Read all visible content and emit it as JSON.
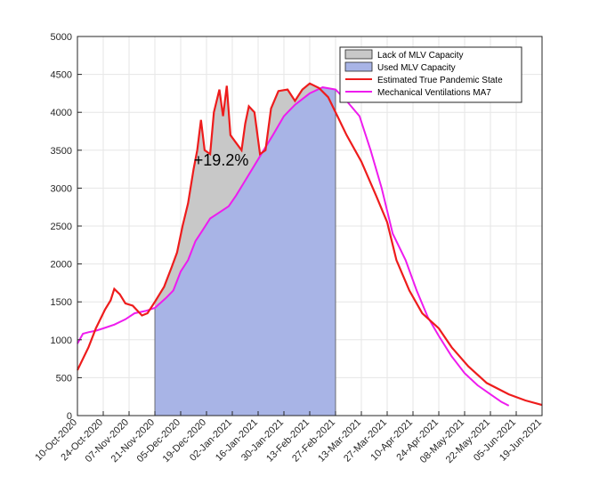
{
  "chart_data": {
    "type": "area",
    "ylim": [
      0,
      5000
    ],
    "yticks": [
      0,
      500,
      1000,
      1500,
      2000,
      2500,
      3000,
      3500,
      4000,
      4500,
      5000
    ],
    "xlim": [
      "2020-10-10",
      "2021-06-19"
    ],
    "xtick_dates": [
      "2020-10-10",
      "2020-10-24",
      "2020-11-07",
      "2020-11-21",
      "2020-12-05",
      "2020-12-19",
      "2021-01-02",
      "2021-01-16",
      "2021-01-30",
      "2021-02-13",
      "2021-02-27",
      "2021-03-13",
      "2021-03-27",
      "2021-04-10",
      "2021-04-24",
      "2021-05-08",
      "2021-05-22",
      "2021-06-05",
      "2021-06-19"
    ],
    "xtick_labels": [
      "10-Oct-2020",
      "24-Oct-2020",
      "07-Nov-2020",
      "21-Nov-2020",
      "05-Dec-2020",
      "19-Dec-2020",
      "02-Jan-2021",
      "16-Jan-2021",
      "30-Jan-2021",
      "13-Feb-2021",
      "27-Feb-2021",
      "13-Mar-2021",
      "27-Mar-2021",
      "10-Apr-2021",
      "24-Apr-2021",
      "08-May-2021",
      "22-May-2021",
      "05-Jun-2021",
      "19-Jun-2021"
    ],
    "grid": true,
    "legend_position": "top-right",
    "shaded_region": [
      "2020-11-21",
      "2021-02-27"
    ],
    "annotation": {
      "text": "+19.2%",
      "x": "2020-12-27",
      "y": 3300
    },
    "series": [
      {
        "name": "Lack of MLV Capacity",
        "kind": "area",
        "color": "#c8c8c8",
        "note_bounds": "between Mechanical Ventilations MA7 and Estimated True Pandemic State"
      },
      {
        "name": "Used MLV Capacity",
        "kind": "area",
        "color": "#a8b4e6",
        "note_bounds": "under Mechanical Ventilations MA7"
      },
      {
        "name": "Estimated True Pandemic State",
        "kind": "line",
        "color": "#ee1c1c",
        "points": [
          [
            "2020-10-10",
            600
          ],
          [
            "2020-10-16",
            900
          ],
          [
            "2020-10-20",
            1150
          ],
          [
            "2020-10-25",
            1400
          ],
          [
            "2020-10-28",
            1520
          ],
          [
            "2020-10-30",
            1670
          ],
          [
            "2020-11-02",
            1600
          ],
          [
            "2020-11-05",
            1480
          ],
          [
            "2020-11-09",
            1450
          ],
          [
            "2020-11-14",
            1320
          ],
          [
            "2020-11-17",
            1350
          ],
          [
            "2020-11-21",
            1500
          ],
          [
            "2020-11-26",
            1700
          ],
          [
            "2020-11-30",
            1950
          ],
          [
            "2020-12-03",
            2150
          ],
          [
            "2020-12-06",
            2500
          ],
          [
            "2020-12-09",
            2800
          ],
          [
            "2020-12-12",
            3250
          ],
          [
            "2020-12-14",
            3500
          ],
          [
            "2020-12-16",
            3900
          ],
          [
            "2020-12-18",
            3500
          ],
          [
            "2020-12-21",
            3450
          ],
          [
            "2020-12-23",
            4000
          ],
          [
            "2020-12-26",
            4300
          ],
          [
            "2020-12-28",
            3950
          ],
          [
            "2020-12-30",
            4350
          ],
          [
            "2021-01-01",
            3700
          ],
          [
            "2021-01-04",
            3600
          ],
          [
            "2021-01-07",
            3500
          ],
          [
            "2021-01-09",
            3850
          ],
          [
            "2021-01-11",
            4080
          ],
          [
            "2021-01-14",
            4000
          ],
          [
            "2021-01-17",
            3450
          ],
          [
            "2021-01-20",
            3500
          ],
          [
            "2021-01-23",
            4050
          ],
          [
            "2021-01-27",
            4280
          ],
          [
            "2021-02-01",
            4300
          ],
          [
            "2021-02-05",
            4150
          ],
          [
            "2021-02-09",
            4300
          ],
          [
            "2021-02-13",
            4380
          ],
          [
            "2021-02-18",
            4320
          ],
          [
            "2021-02-23",
            4200
          ],
          [
            "2021-02-28",
            3950
          ],
          [
            "2021-03-05",
            3700
          ],
          [
            "2021-03-13",
            3350
          ],
          [
            "2021-03-21",
            2900
          ],
          [
            "2021-03-27",
            2550
          ],
          [
            "2021-04-01",
            2050
          ],
          [
            "2021-04-08",
            1650
          ],
          [
            "2021-04-15",
            1350
          ],
          [
            "2021-04-24",
            1150
          ],
          [
            "2021-05-01",
            900
          ],
          [
            "2021-05-10",
            650
          ],
          [
            "2021-05-20",
            430
          ],
          [
            "2021-06-01",
            280
          ],
          [
            "2021-06-10",
            200
          ],
          [
            "2021-06-19",
            140
          ]
        ]
      },
      {
        "name": "Mechanical Ventilations MA7",
        "kind": "line",
        "color": "#ee1cee",
        "points": [
          [
            "2020-10-10",
            950
          ],
          [
            "2020-10-13",
            1080
          ],
          [
            "2020-10-16",
            1100
          ],
          [
            "2020-10-20",
            1120
          ],
          [
            "2020-10-24",
            1150
          ],
          [
            "2020-10-30",
            1200
          ],
          [
            "2020-11-05",
            1270
          ],
          [
            "2020-11-10",
            1350
          ],
          [
            "2020-11-16",
            1380
          ],
          [
            "2020-11-21",
            1420
          ],
          [
            "2020-11-27",
            1550
          ],
          [
            "2020-12-01",
            1650
          ],
          [
            "2020-12-05",
            1900
          ],
          [
            "2020-12-09",
            2050
          ],
          [
            "2020-12-13",
            2300
          ],
          [
            "2020-12-17",
            2450
          ],
          [
            "2020-12-21",
            2600
          ],
          [
            "2020-12-26",
            2680
          ],
          [
            "2020-12-31",
            2760
          ],
          [
            "2021-01-04",
            2900
          ],
          [
            "2021-01-09",
            3100
          ],
          [
            "2021-01-14",
            3300
          ],
          [
            "2021-01-19",
            3500
          ],
          [
            "2021-01-24",
            3700
          ],
          [
            "2021-01-30",
            3950
          ],
          [
            "2021-02-05",
            4100
          ],
          [
            "2021-02-13",
            4250
          ],
          [
            "2021-02-20",
            4330
          ],
          [
            "2021-02-27",
            4300
          ],
          [
            "2021-03-05",
            4150
          ],
          [
            "2021-03-12",
            3950
          ],
          [
            "2021-03-18",
            3500
          ],
          [
            "2021-03-24",
            3000
          ],
          [
            "2021-03-30",
            2400
          ],
          [
            "2021-04-06",
            2050
          ],
          [
            "2021-04-12",
            1650
          ],
          [
            "2021-04-18",
            1300
          ],
          [
            "2021-04-24",
            1050
          ],
          [
            "2021-05-01",
            780
          ],
          [
            "2021-05-08",
            560
          ],
          [
            "2021-05-15",
            400
          ],
          [
            "2021-05-22",
            280
          ],
          [
            "2021-05-28",
            180
          ],
          [
            "2021-06-01",
            130
          ]
        ]
      }
    ]
  }
}
